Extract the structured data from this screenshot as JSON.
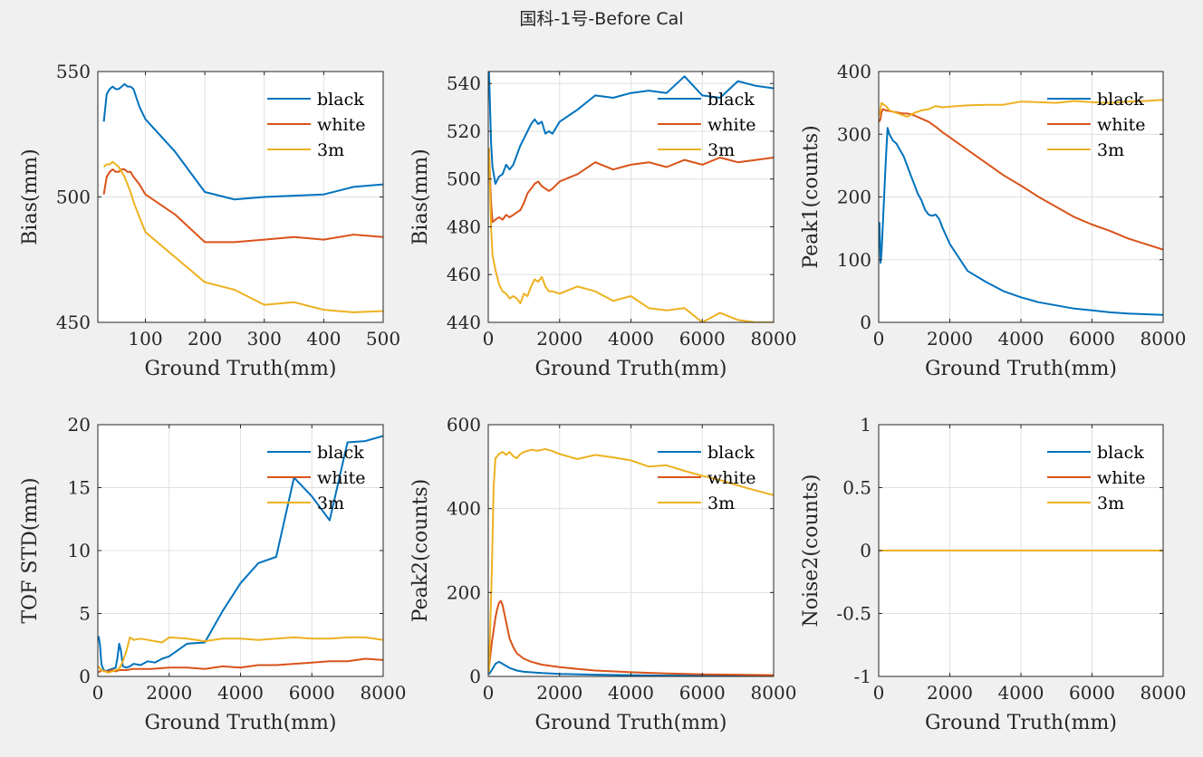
{
  "figure_title": "国科-1号-Before Cal",
  "colors": {
    "black": "#0072bd",
    "white": "#d95319",
    "3m": "#edb120"
  },
  "chart_data": [
    {
      "type": "line",
      "xlabel": "Ground Truth(mm)",
      "ylabel": "Bias(mm)",
      "xlim": [
        20,
        500
      ],
      "ylim": [
        450,
        550
      ],
      "xticks": [
        100,
        200,
        300,
        400,
        500
      ],
      "yticks": [
        450,
        500,
        550
      ],
      "grid": true,
      "legend": "top-right",
      "series": [
        {
          "name": "black",
          "x": [
            30,
            35,
            40,
            45,
            50,
            55,
            60,
            65,
            70,
            75,
            80,
            90,
            100,
            150,
            200,
            250,
            300,
            350,
            400,
            450,
            500
          ],
          "y": [
            530,
            541,
            543,
            544,
            543,
            543,
            544,
            545,
            544,
            544,
            543,
            536,
            531,
            518,
            502,
            499,
            500,
            500.5,
            501,
            504,
            505
          ]
        },
        {
          "name": "white",
          "x": [
            30,
            35,
            40,
            45,
            50,
            55,
            60,
            65,
            70,
            75,
            80,
            90,
            100,
            150,
            200,
            250,
            300,
            350,
            400,
            450,
            500
          ],
          "y": [
            501,
            508,
            510,
            511,
            510,
            510,
            511,
            511,
            510,
            510,
            508,
            505,
            501,
            493,
            482,
            482,
            483,
            484,
            483,
            485,
            484
          ]
        },
        {
          "name": "3m",
          "x": [
            30,
            35,
            40,
            45,
            50,
            55,
            60,
            65,
            70,
            75,
            80,
            90,
            100,
            150,
            200,
            250,
            300,
            350,
            400,
            450,
            500
          ],
          "y": [
            512,
            513,
            513,
            514,
            513,
            512,
            510,
            508,
            505,
            502,
            498,
            492,
            486,
            476,
            466,
            463,
            457,
            458,
            455,
            454,
            454.5
          ]
        }
      ]
    },
    {
      "type": "line",
      "xlabel": "Ground Truth(mm)",
      "ylabel": "Bias(mm)",
      "xlim": [
        0,
        8000
      ],
      "ylim": [
        440,
        545
      ],
      "xticks": [
        0,
        2000,
        4000,
        6000,
        8000
      ],
      "yticks": [
        440,
        460,
        480,
        500,
        520,
        540
      ],
      "grid": true,
      "legend": "top-right",
      "series": [
        {
          "name": "black",
          "x": [
            20,
            50,
            80,
            120,
            200,
            300,
            400,
            500,
            600,
            700,
            800,
            900,
            1000,
            1100,
            1200,
            1300,
            1400,
            1500,
            1600,
            1700,
            1800,
            2000,
            2500,
            3000,
            3500,
            4000,
            4500,
            5000,
            5500,
            6000,
            6500,
            7000,
            7500,
            8000
          ],
          "y": [
            545,
            530,
            515,
            505,
            498,
            501,
            502,
            506,
            504,
            506,
            510,
            514,
            517,
            520,
            523,
            525,
            523,
            524,
            519,
            520,
            519,
            524,
            529,
            535,
            534,
            536,
            537,
            536,
            543,
            535,
            534,
            541,
            539,
            538
          ]
        },
        {
          "name": "white",
          "x": [
            20,
            50,
            80,
            120,
            200,
            300,
            400,
            500,
            600,
            700,
            800,
            900,
            1000,
            1100,
            1200,
            1300,
            1400,
            1500,
            1600,
            1700,
            1800,
            2000,
            2500,
            3000,
            3500,
            4000,
            4500,
            5000,
            5500,
            6000,
            6500,
            7000,
            7500,
            8000
          ],
          "y": [
            513,
            500,
            490,
            482,
            483,
            484,
            483,
            485,
            484,
            485,
            486,
            487,
            490,
            494,
            496,
            498,
            499,
            497,
            496,
            495,
            496,
            499,
            502,
            507,
            504,
            506,
            507,
            505,
            508,
            506,
            509,
            507,
            508,
            509
          ]
        },
        {
          "name": "3m",
          "x": [
            20,
            50,
            80,
            120,
            200,
            300,
            400,
            500,
            600,
            700,
            800,
            900,
            1000,
            1100,
            1200,
            1300,
            1400,
            1500,
            1600,
            1700,
            1800,
            2000,
            2500,
            3000,
            3500,
            4000,
            4500,
            5000,
            5500,
            6000,
            6500,
            7000,
            7500,
            8000
          ],
          "y": [
            513,
            495,
            480,
            468,
            462,
            456,
            453,
            452,
            450,
            451,
            450,
            448,
            452,
            451,
            455,
            458,
            457,
            459,
            455,
            453,
            453,
            452,
            455,
            453,
            449,
            451,
            446,
            445,
            446,
            440,
            444,
            441,
            440,
            440
          ]
        }
      ]
    },
    {
      "type": "line",
      "xlabel": "Ground Truth(mm)",
      "ylabel": "Peak1(counts)",
      "xlim": [
        0,
        8000
      ],
      "ylim": [
        0,
        400
      ],
      "xticks": [
        0,
        2000,
        4000,
        6000,
        8000
      ],
      "yticks": [
        0,
        100,
        200,
        300,
        400
      ],
      "grid": true,
      "legend": "top-right",
      "series": [
        {
          "name": "black",
          "x": [
            20,
            50,
            80,
            120,
            200,
            250,
            300,
            400,
            500,
            600,
            700,
            800,
            900,
            1000,
            1100,
            1200,
            1300,
            1400,
            1500,
            1600,
            1700,
            1800,
            2000,
            2500,
            3000,
            3500,
            4000,
            4500,
            5000,
            5500,
            6000,
            6500,
            7000,
            7500,
            8000
          ],
          "y": [
            160,
            95,
            110,
            160,
            260,
            310,
            300,
            290,
            285,
            275,
            265,
            250,
            235,
            220,
            205,
            195,
            180,
            172,
            170,
            172,
            165,
            150,
            125,
            82,
            65,
            50,
            40,
            32,
            27,
            22,
            19,
            16,
            14,
            13,
            12
          ]
        },
        {
          "name": "white",
          "x": [
            20,
            50,
            80,
            120,
            200,
            300,
            400,
            500,
            600,
            700,
            800,
            900,
            1000,
            1200,
            1400,
            1600,
            1800,
            2000,
            2500,
            3000,
            3500,
            4000,
            4500,
            5000,
            5500,
            6000,
            6500,
            7000,
            7500,
            8000
          ],
          "y": [
            320,
            325,
            335,
            340,
            338,
            337,
            336,
            335,
            334,
            333,
            333,
            332,
            330,
            325,
            320,
            312,
            303,
            295,
            275,
            255,
            235,
            218,
            200,
            184,
            168,
            156,
            146,
            134,
            125,
            116
          ]
        },
        {
          "name": "3m",
          "x": [
            20,
            50,
            80,
            120,
            200,
            300,
            400,
            500,
            600,
            800,
            1000,
            1200,
            1400,
            1600,
            1800,
            2000,
            2500,
            3000,
            3500,
            4000,
            4500,
            5000,
            5500,
            6000,
            6500,
            7000,
            7500,
            8000
          ],
          "y": [
            330,
            340,
            350,
            348,
            345,
            338,
            336,
            334,
            332,
            328,
            334,
            338,
            340,
            345,
            343,
            344,
            346,
            347,
            347,
            352,
            351,
            350,
            353,
            351,
            350,
            352,
            353,
            355
          ]
        }
      ]
    },
    {
      "type": "line",
      "xlabel": "Ground Truth(mm)",
      "ylabel": "TOF STD(mm)",
      "xlim": [
        0,
        8000
      ],
      "ylim": [
        0,
        20
      ],
      "xticks": [
        0,
        2000,
        4000,
        6000,
        8000
      ],
      "yticks": [
        0,
        5,
        10,
        15,
        20
      ],
      "grid": true,
      "legend": "top-right",
      "series": [
        {
          "name": "black",
          "x": [
            20,
            60,
            100,
            150,
            200,
            300,
            400,
            500,
            550,
            600,
            650,
            700,
            800,
            900,
            1000,
            1200,
            1400,
            1600,
            1800,
            2000,
            2500,
            3000,
            3500,
            4000,
            4500,
            5000,
            5500,
            6000,
            6500,
            7000,
            7500,
            8000
          ],
          "y": [
            3.2,
            2.5,
            1.0,
            0.6,
            0.4,
            0.5,
            0.6,
            0.7,
            1.5,
            2.6,
            2.0,
            0.8,
            0.7,
            0.8,
            1.0,
            0.9,
            1.2,
            1.1,
            1.4,
            1.6,
            2.6,
            2.7,
            5.2,
            7.4,
            9.0,
            9.5,
            15.8,
            14.3,
            12.4,
            18.6,
            18.7,
            19.1
          ]
        },
        {
          "name": "white",
          "x": [
            20,
            100,
            200,
            300,
            400,
            500,
            600,
            800,
            1000,
            1500,
            2000,
            2500,
            3000,
            3500,
            4000,
            4500,
            5000,
            5500,
            6000,
            6500,
            7000,
            7500,
            8000
          ],
          "y": [
            0.3,
            0.5,
            0.4,
            0.4,
            0.5,
            0.4,
            0.5,
            0.5,
            0.6,
            0.6,
            0.7,
            0.7,
            0.6,
            0.8,
            0.7,
            0.9,
            0.9,
            1.0,
            1.1,
            1.2,
            1.2,
            1.4,
            1.3
          ]
        },
        {
          "name": "3m",
          "x": [
            20,
            100,
            200,
            300,
            400,
            500,
            600,
            700,
            800,
            900,
            1000,
            1200,
            1400,
            1600,
            1800,
            2000,
            2500,
            3000,
            3500,
            4000,
            4500,
            5000,
            5500,
            6000,
            6500,
            7000,
            7500,
            8000
          ],
          "y": [
            0.8,
            0.5,
            0.4,
            0.3,
            0.4,
            0.5,
            0.6,
            1.2,
            2.0,
            3.1,
            2.9,
            3.0,
            2.9,
            2.8,
            2.7,
            3.1,
            3.0,
            2.8,
            3.0,
            3.0,
            2.9,
            3.0,
            3.1,
            3.0,
            3.0,
            3.1,
            3.1,
            2.9
          ]
        }
      ]
    },
    {
      "type": "line",
      "xlabel": "Ground Truth(mm)",
      "ylabel": "Peak2(counts)",
      "xlim": [
        0,
        8000
      ],
      "ylim": [
        0,
        600
      ],
      "xticks": [
        0,
        2000,
        4000,
        6000,
        8000
      ],
      "yticks": [
        0,
        200,
        400,
        600
      ],
      "grid": true,
      "legend": "top-right",
      "series": [
        {
          "name": "black",
          "x": [
            20,
            100,
            200,
            300,
            400,
            500,
            600,
            800,
            1000,
            1500,
            2000,
            3000,
            4000,
            5000,
            6000,
            7000,
            8000
          ],
          "y": [
            5,
            15,
            30,
            35,
            30,
            25,
            20,
            14,
            11,
            8,
            6,
            4,
            3,
            2,
            2,
            1,
            1
          ]
        },
        {
          "name": "white",
          "x": [
            20,
            100,
            200,
            250,
            300,
            350,
            400,
            500,
            600,
            700,
            800,
            1000,
            1200,
            1500,
            2000,
            2500,
            3000,
            4000,
            5000,
            6000,
            7000,
            8000
          ],
          "y": [
            20,
            80,
            140,
            160,
            175,
            180,
            170,
            130,
            90,
            70,
            55,
            42,
            35,
            28,
            22,
            18,
            14,
            10,
            7,
            5,
            4,
            3
          ]
        },
        {
          "name": "3m",
          "x": [
            20,
            100,
            150,
            200,
            300,
            400,
            500,
            600,
            700,
            800,
            900,
            1000,
            1200,
            1400,
            1600,
            1800,
            2000,
            2500,
            3000,
            3500,
            4000,
            4500,
            5000,
            5500,
            6000,
            6500,
            7000,
            7500,
            8000
          ],
          "y": [
            10,
            250,
            450,
            520,
            530,
            535,
            528,
            535,
            525,
            520,
            530,
            535,
            540,
            538,
            542,
            537,
            530,
            518,
            528,
            522,
            515,
            500,
            503,
            490,
            478,
            468,
            455,
            443,
            432
          ]
        }
      ]
    },
    {
      "type": "line",
      "xlabel": "Ground Truth(mm)",
      "ylabel": "Noise2(counts)",
      "xlim": [
        0,
        8000
      ],
      "ylim": [
        -1,
        1
      ],
      "xticks": [
        0,
        2000,
        4000,
        6000,
        8000
      ],
      "yticks": [
        -1,
        -0.5,
        0,
        0.5,
        1
      ],
      "grid": true,
      "legend": "top-right",
      "series": [
        {
          "name": "black",
          "x": [
            20,
            8000
          ],
          "y": [
            0,
            0
          ]
        },
        {
          "name": "white",
          "x": [
            20,
            8000
          ],
          "y": [
            0,
            0
          ]
        },
        {
          "name": "3m",
          "x": [
            20,
            8000
          ],
          "y": [
            0,
            0
          ]
        }
      ]
    }
  ]
}
